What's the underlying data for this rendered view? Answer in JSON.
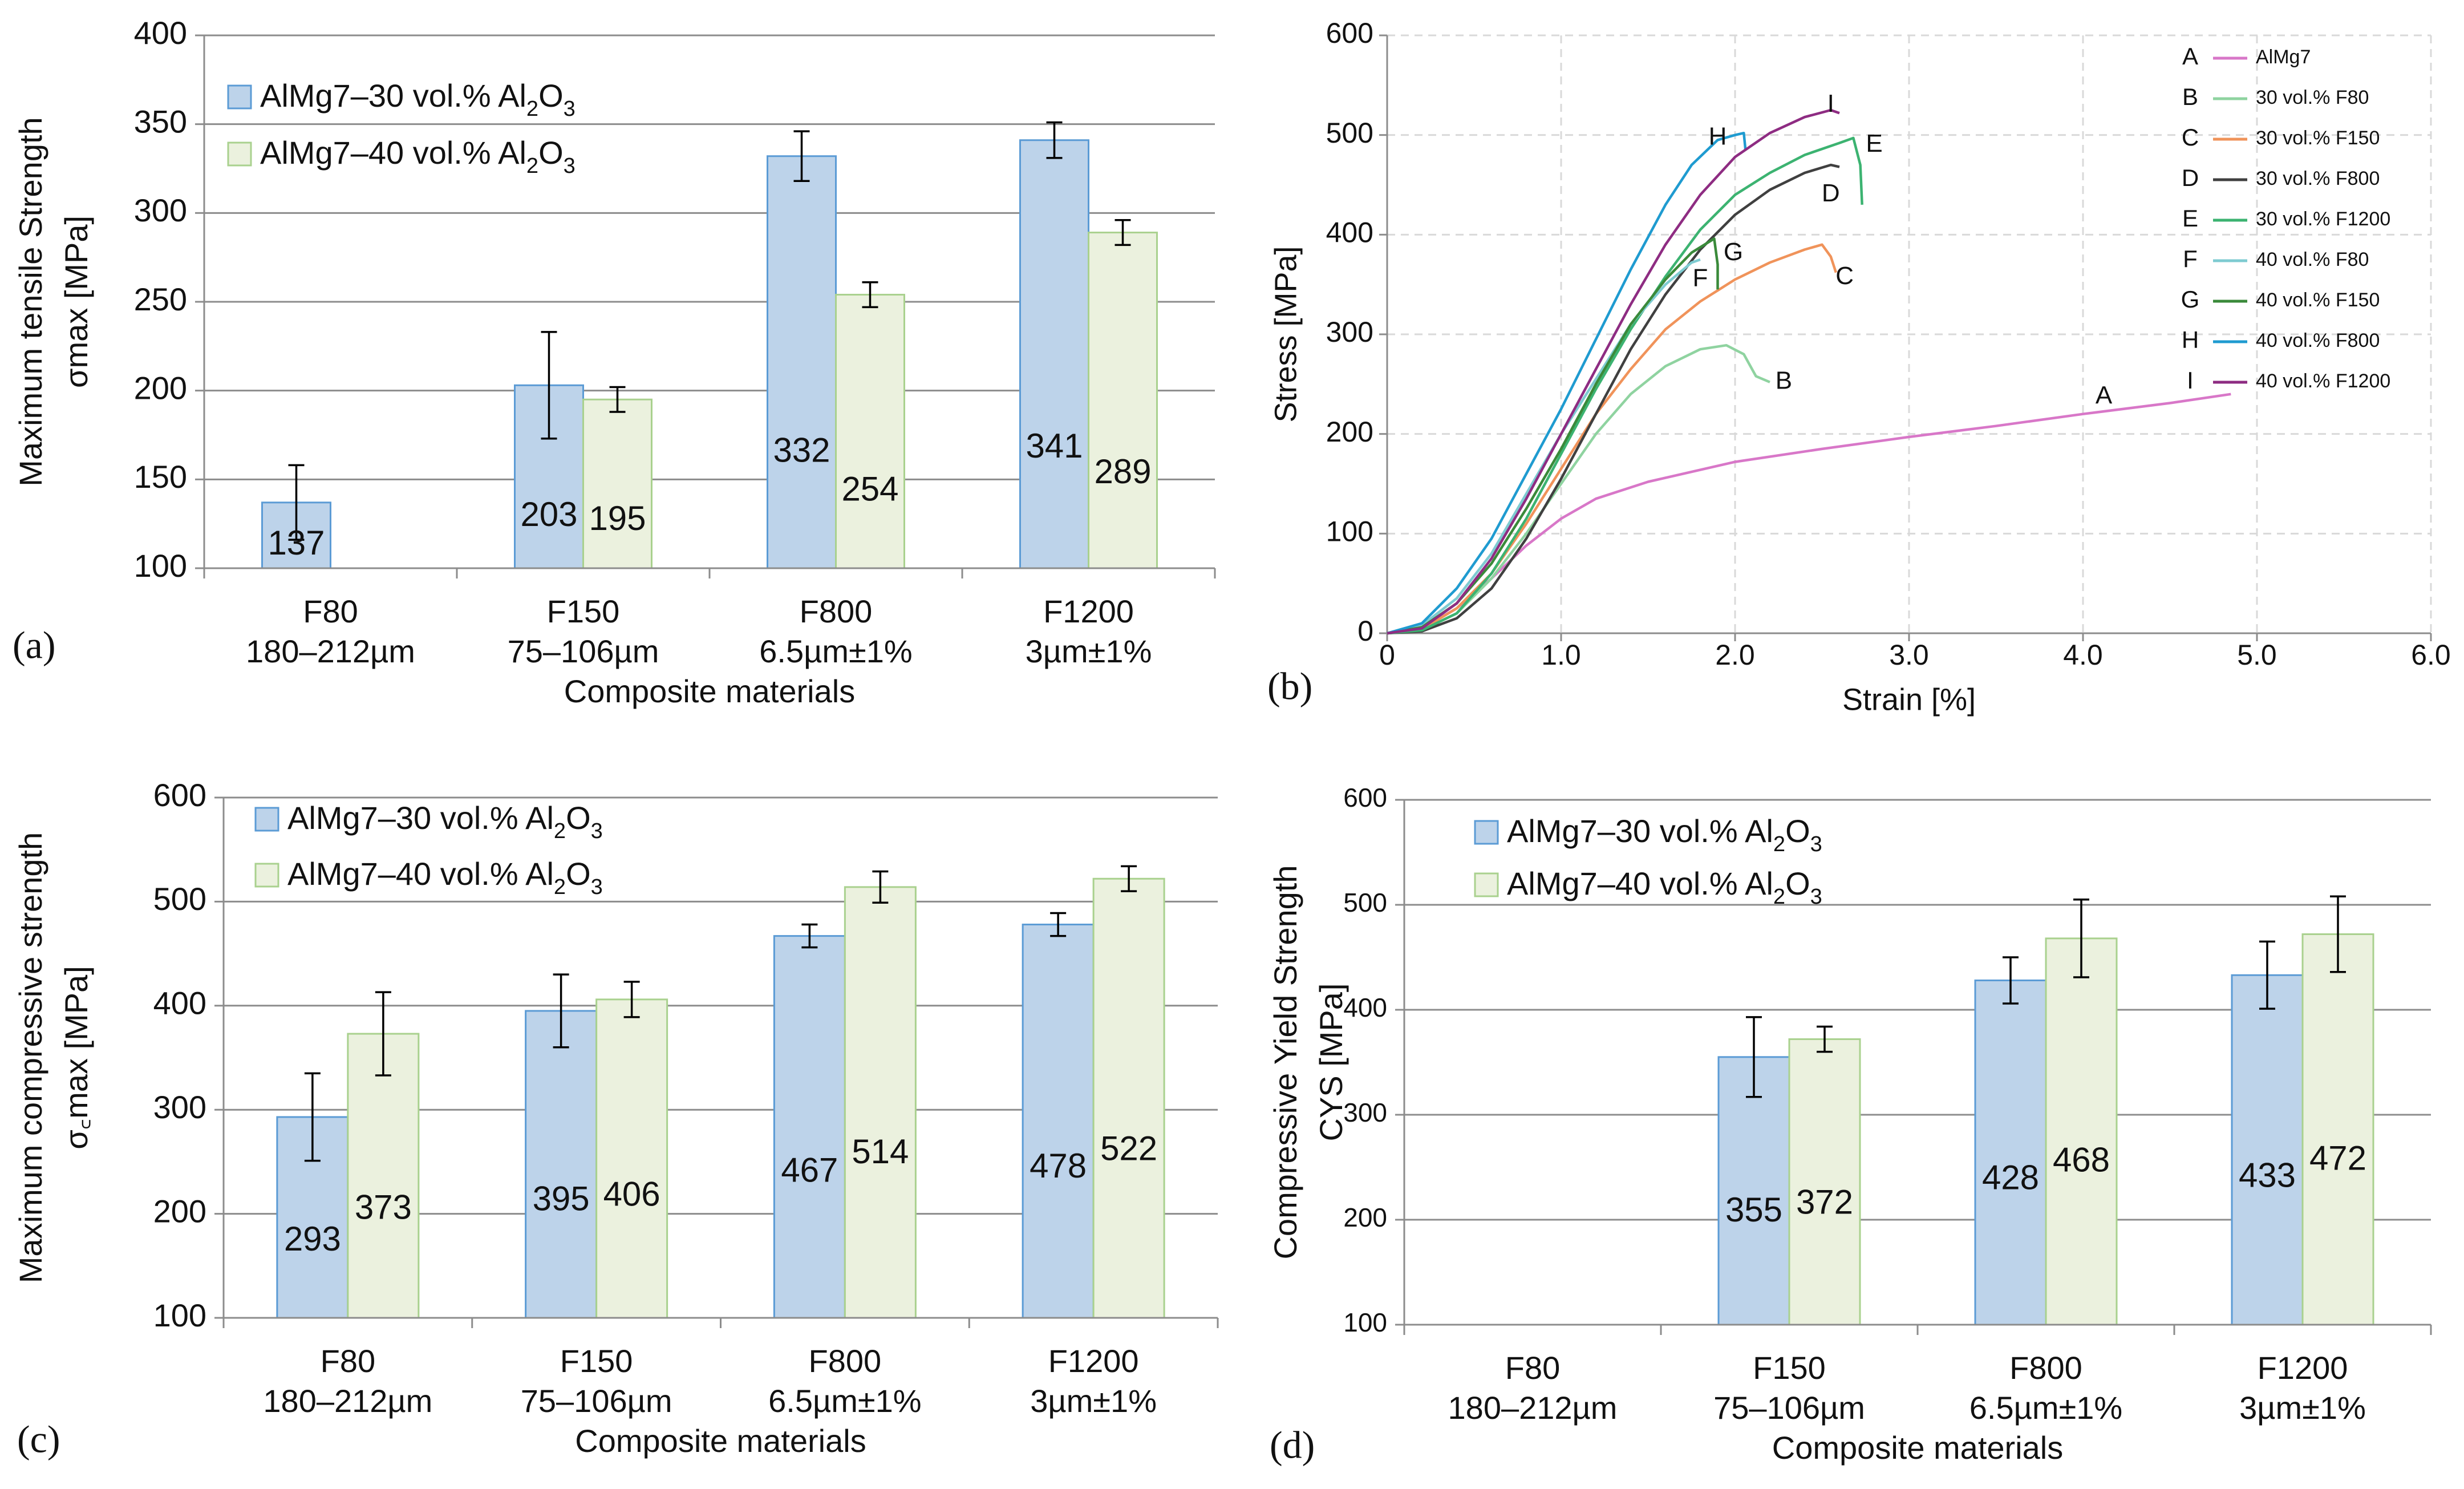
{
  "chart_data": [
    {
      "id": "a",
      "panel_label": "(a)",
      "type": "bar",
      "ylabel_lines": [
        "Maximum tensile Strength",
        "σmax [MPa]"
      ],
      "xlabel": "Composite materials",
      "ylim": [
        100,
        400
      ],
      "yticks": [
        100,
        150,
        200,
        250,
        300,
        350,
        400
      ],
      "categories": [
        {
          "name": "F80",
          "size": "180–212µm"
        },
        {
          "name": "F150",
          "size": "75–106µm"
        },
        {
          "name": "F800",
          "size": "6.5µm±1%"
        },
        {
          "name": "F1200",
          "size": "3µm±1%"
        }
      ],
      "series": [
        {
          "name": "AlMg7–30 vol.% Al₂O₃",
          "values": [
            137,
            203,
            332,
            341
          ],
          "errors": [
            21,
            30,
            14,
            10
          ],
          "color": "#bdd3ea",
          "edge": "#5b9bd5"
        },
        {
          "name": "AlMg7–40 vol.% Al₂O₃",
          "values": [
            null,
            195,
            254,
            289
          ],
          "errors": [
            null,
            7,
            7,
            7
          ],
          "color": "#ebf1de",
          "edge": "#a9d18e"
        }
      ]
    },
    {
      "id": "b",
      "panel_label": "(b)",
      "type": "line",
      "ylabel": "Stress [MPa]",
      "xlabel": "Strain [%]",
      "xlim": [
        0,
        6
      ],
      "ylim": [
        0,
        600
      ],
      "xticks": [
        "0",
        "1.0",
        "2.0",
        "3.0",
        "4.0",
        "5.0",
        "6.0"
      ],
      "yticks": [
        "0",
        "100",
        "200",
        "300",
        "400",
        "500",
        "600"
      ],
      "series": [
        {
          "letter": "A",
          "name": "AlMg7",
          "color": "#d877c8",
          "label_at": [
            4.12,
            237
          ],
          "points": [
            [
              0,
              0
            ],
            [
              0.2,
              5
            ],
            [
              0.4,
              25
            ],
            [
              0.6,
              55
            ],
            [
              0.8,
              88
            ],
            [
              1.0,
              115
            ],
            [
              1.2,
              135
            ],
            [
              1.5,
              152
            ],
            [
              2.0,
              172
            ],
            [
              2.5,
              185
            ],
            [
              3.0,
              197
            ],
            [
              3.5,
              208
            ],
            [
              4.0,
              220
            ],
            [
              4.5,
              231
            ],
            [
              4.85,
              240
            ]
          ]
        },
        {
          "letter": "B",
          "name": "30 vol.% F80",
          "color": "#8fd3a0",
          "label_at": [
            2.28,
            252
          ],
          "points": [
            [
              0,
              0
            ],
            [
              0.2,
              3
            ],
            [
              0.4,
              20
            ],
            [
              0.6,
              55
            ],
            [
              0.8,
              100
            ],
            [
              1.0,
              150
            ],
            [
              1.2,
              200
            ],
            [
              1.4,
              240
            ],
            [
              1.6,
              268
            ],
            [
              1.8,
              285
            ],
            [
              1.95,
              289
            ],
            [
              2.05,
              280
            ],
            [
              2.12,
              258
            ],
            [
              2.2,
              252
            ]
          ]
        },
        {
          "letter": "C",
          "name": "30 vol.% F150",
          "color": "#f0935a",
          "label_at": [
            2.63,
            357
          ],
          "points": [
            [
              0,
              0
            ],
            [
              0.2,
              4
            ],
            [
              0.4,
              25
            ],
            [
              0.6,
              60
            ],
            [
              0.8,
              110
            ],
            [
              1.0,
              165
            ],
            [
              1.2,
              220
            ],
            [
              1.4,
              265
            ],
            [
              1.6,
              305
            ],
            [
              1.8,
              333
            ],
            [
              2.0,
              355
            ],
            [
              2.2,
              372
            ],
            [
              2.4,
              385
            ],
            [
              2.5,
              390
            ],
            [
              2.55,
              378
            ],
            [
              2.58,
              362
            ]
          ]
        },
        {
          "letter": "D",
          "name": "30 vol.% F800",
          "color": "#404040",
          "label_at": [
            2.55,
            440
          ],
          "points": [
            [
              0,
              0
            ],
            [
              0.2,
              2
            ],
            [
              0.4,
              15
            ],
            [
              0.6,
              45
            ],
            [
              0.8,
              95
            ],
            [
              1.0,
              155
            ],
            [
              1.2,
              220
            ],
            [
              1.4,
              285
            ],
            [
              1.6,
              340
            ],
            [
              1.8,
              385
            ],
            [
              2.0,
              420
            ],
            [
              2.2,
              445
            ],
            [
              2.4,
              462
            ],
            [
              2.55,
              470
            ],
            [
              2.6,
              468
            ]
          ]
        },
        {
          "letter": "E",
          "name": "30 vol.% F1200",
          "color": "#3cb371",
          "label_at": [
            2.8,
            490
          ],
          "points": [
            [
              0,
              0
            ],
            [
              0.2,
              3
            ],
            [
              0.4,
              20
            ],
            [
              0.6,
              60
            ],
            [
              0.8,
              115
            ],
            [
              1.0,
              180
            ],
            [
              1.2,
              245
            ],
            [
              1.4,
              305
            ],
            [
              1.6,
              358
            ],
            [
              1.8,
              405
            ],
            [
              2.0,
              440
            ],
            [
              2.2,
              462
            ],
            [
              2.4,
              480
            ],
            [
              2.6,
              492
            ],
            [
              2.68,
              497
            ],
            [
              2.72,
              470
            ],
            [
              2.73,
              430
            ]
          ]
        },
        {
          "letter": "F",
          "name": "40 vol.% F80",
          "color": "#7ecbd1",
          "label_at": [
            1.8,
            355
          ],
          "points": [
            [
              0,
              0
            ],
            [
              0.2,
              8
            ],
            [
              0.4,
              35
            ],
            [
              0.6,
              80
            ],
            [
              0.8,
              140
            ],
            [
              1.0,
              200
            ],
            [
              1.2,
              255
            ],
            [
              1.4,
              310
            ],
            [
              1.6,
              350
            ],
            [
              1.75,
              372
            ],
            [
              1.8,
              375
            ]
          ]
        },
        {
          "letter": "G",
          "name": "40 vol.% F150",
          "color": "#3a8a3a",
          "label_at": [
            1.99,
            381
          ],
          "points": [
            [
              0,
              0
            ],
            [
              0.2,
              6
            ],
            [
              0.4,
              30
            ],
            [
              0.6,
              70
            ],
            [
              0.8,
              125
            ],
            [
              1.0,
              185
            ],
            [
              1.2,
              250
            ],
            [
              1.4,
              310
            ],
            [
              1.6,
              355
            ],
            [
              1.75,
              382
            ],
            [
              1.88,
              396
            ],
            [
              1.9,
              370
            ],
            [
              1.9,
              345
            ]
          ]
        },
        {
          "letter": "H",
          "name": "40 vol.% F800",
          "color": "#1f9bd0",
          "label_at": [
            1.9,
            497
          ],
          "points": [
            [
              0,
              0
            ],
            [
              0.2,
              10
            ],
            [
              0.4,
              45
            ],
            [
              0.6,
              95
            ],
            [
              0.8,
              160
            ],
            [
              1.0,
              225
            ],
            [
              1.2,
              295
            ],
            [
              1.4,
              365
            ],
            [
              1.6,
              430
            ],
            [
              1.75,
              470
            ],
            [
              1.9,
              495
            ],
            [
              2.0,
              500
            ],
            [
              2.05,
              502
            ],
            [
              2.06,
              485
            ]
          ]
        },
        {
          "letter": "I",
          "name": "40 vol.% F1200",
          "color": "#8e2c82",
          "label_at": [
            2.55,
            530
          ],
          "points": [
            [
              0,
              0
            ],
            [
              0.2,
              5
            ],
            [
              0.4,
              30
            ],
            [
              0.6,
              75
            ],
            [
              0.8,
              135
            ],
            [
              1.0,
              200
            ],
            [
              1.2,
              265
            ],
            [
              1.4,
              330
            ],
            [
              1.6,
              390
            ],
            [
              1.8,
              440
            ],
            [
              2.0,
              478
            ],
            [
              2.2,
              502
            ],
            [
              2.4,
              518
            ],
            [
              2.55,
              525
            ],
            [
              2.6,
              522
            ]
          ]
        }
      ]
    },
    {
      "id": "c",
      "panel_label": "(c)",
      "type": "bar",
      "ylabel_lines": [
        "Maximum compressive strength",
        "σ꜀max [MPa]"
      ],
      "xlabel": "Composite materials",
      "ylim": [
        100,
        600
      ],
      "yticks": [
        100,
        200,
        300,
        400,
        500,
        600
      ],
      "categories": [
        {
          "name": "F80",
          "size": "180–212µm"
        },
        {
          "name": "F150",
          "size": "75–106µm"
        },
        {
          "name": "F800",
          "size": "6.5µm±1%"
        },
        {
          "name": "F1200",
          "size": "3µm±1%"
        }
      ],
      "series": [
        {
          "name": "AlMg7–30 vol.% Al₂O₃",
          "values": [
            293,
            395,
            467,
            478
          ],
          "errors": [
            42,
            35,
            11,
            11
          ],
          "color": "#bdd3ea",
          "edge": "#5b9bd5"
        },
        {
          "name": "AlMg7–40 vol.% Al₂O₃",
          "values": [
            373,
            406,
            514,
            522
          ],
          "errors": [
            40,
            17,
            15,
            12
          ],
          "color": "#ebf1de",
          "edge": "#a9d18e"
        }
      ]
    },
    {
      "id": "d",
      "panel_label": "(d)",
      "type": "bar",
      "ylabel_lines": [
        "Compressive Yield Strength",
        "CYS [MPa]"
      ],
      "xlabel": "Composite materials",
      "ylim": [
        100,
        600
      ],
      "yticks": [
        100,
        200,
        300,
        400,
        500,
        600
      ],
      "categories": [
        {
          "name": "F80",
          "size": "180–212µm"
        },
        {
          "name": "F150",
          "size": "75–106µm"
        },
        {
          "name": "F800",
          "size": "6.5µm±1%"
        },
        {
          "name": "F1200",
          "size": "3µm±1%"
        }
      ],
      "series": [
        {
          "name": "AlMg7–30 vol.% Al₂O₃",
          "values": [
            null,
            355,
            428,
            433
          ],
          "errors": [
            null,
            38,
            22,
            32
          ],
          "color": "#bdd3ea",
          "edge": "#5b9bd5"
        },
        {
          "name": "AlMg7–40 vol.% Al₂O₃",
          "values": [
            null,
            372,
            468,
            472
          ],
          "errors": [
            null,
            12,
            37,
            36
          ],
          "color": "#ebf1de",
          "edge": "#a9d18e"
        }
      ]
    }
  ]
}
